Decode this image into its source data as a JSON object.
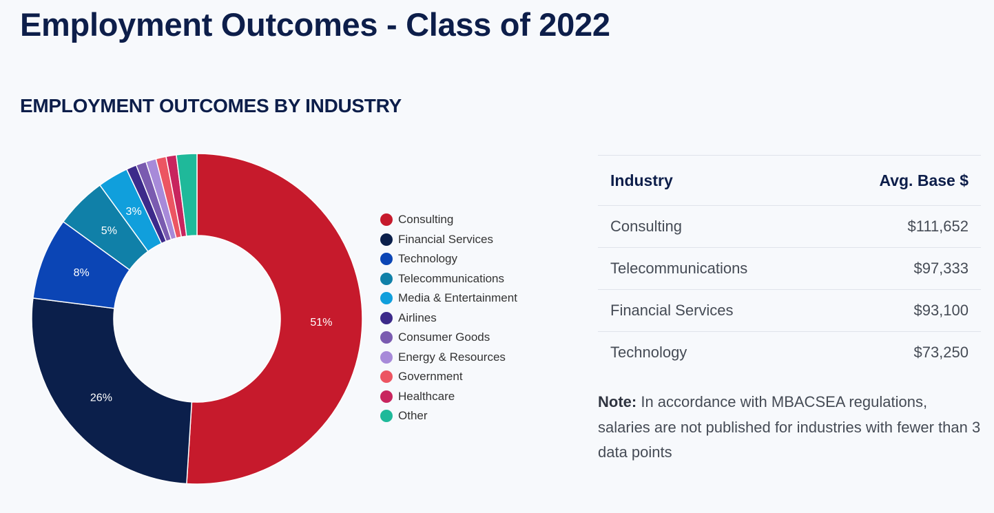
{
  "page": {
    "title": "Employment Outcomes - Class of 2022",
    "section_title": "EMPLOYMENT OUTCOMES BY INDUSTRY"
  },
  "chart_data": {
    "type": "pie",
    "title": "",
    "donut": true,
    "legend_position": "right",
    "categories": [
      "Consulting",
      "Financial Services",
      "Technology",
      "Telecommunications",
      "Media & Entertainment",
      "Airlines",
      "Consumer Goods",
      "Energy & Resources",
      "Government",
      "Healthcare",
      "Other"
    ],
    "values": [
      51,
      26,
      8,
      5,
      3,
      1,
      1,
      1,
      1,
      1,
      2
    ],
    "data_labels": [
      "51%",
      "26%",
      "8%",
      "5%",
      "3%",
      "",
      "",
      "",
      "",
      "",
      ""
    ],
    "colors": [
      "#c61a2c",
      "#0b1f4b",
      "#0b45b5",
      "#1080a8",
      "#109fdc",
      "#3c2a8a",
      "#7a5bb0",
      "#a78ad9",
      "#ec5562",
      "#c8255e",
      "#1fb99a"
    ]
  },
  "table": {
    "headers": [
      "Industry",
      "Avg. Base $"
    ],
    "rows": [
      [
        "Consulting",
        "$111,652"
      ],
      [
        "Telecommunications",
        "$97,333"
      ],
      [
        "Financial Services",
        "$93,100"
      ],
      [
        "Technology",
        "$73,250"
      ]
    ]
  },
  "note": {
    "label": "Note:",
    "text": " In accordance with MBACSEA regulations, salaries are not published for industries with fewer than 3 data points"
  }
}
